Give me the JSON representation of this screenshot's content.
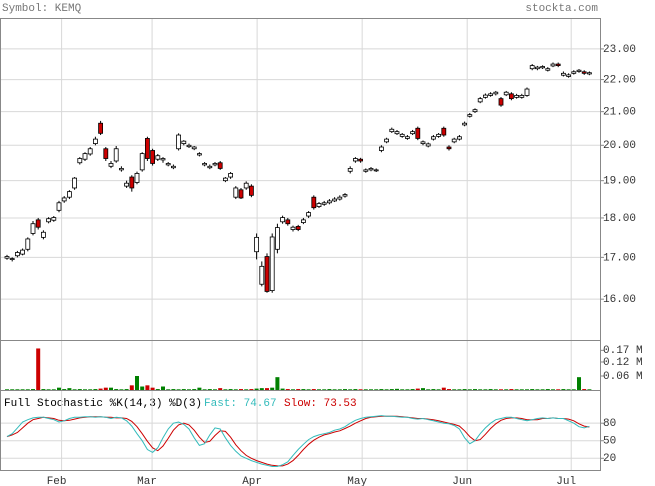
{
  "chart_data": {
    "type": "candlestick",
    "symbol_label": "Symbol: KEMQ",
    "source": "stockta.com",
    "log_scale": true,
    "grid": true,
    "ylim": [
      15.08,
      24.02
    ],
    "yticks": [
      {
        "value": 16,
        "label": "16.00"
      },
      {
        "value": 17,
        "label": "17.00"
      },
      {
        "value": 18,
        "label": "18.00"
      },
      {
        "value": 19,
        "label": "19.00"
      },
      {
        "value": 20,
        "label": "20.00"
      },
      {
        "value": 21,
        "label": "21.00"
      },
      {
        "value": 22,
        "label": "22.00"
      },
      {
        "value": 23,
        "label": "23.00"
      }
    ],
    "xticks": [
      {
        "value": 10.5,
        "label": "Feb"
      },
      {
        "value": 27.9,
        "label": "Mar"
      },
      {
        "value": 48.1,
        "label": "Apr"
      },
      {
        "value": 68.3,
        "label": "May"
      },
      {
        "value": 88.5,
        "label": "Jun"
      },
      {
        "value": 108.5,
        "label": "Jul"
      }
    ],
    "up_color": "#ffffff",
    "down_color": "#cc0000",
    "ohlc": [
      [
        16.98,
        17.06,
        16.94,
        17.02
      ],
      [
        16.95,
        17.0,
        16.9,
        16.97
      ],
      [
        17.04,
        17.16,
        17.0,
        17.12
      ],
      [
        17.08,
        17.22,
        17.05,
        17.18
      ],
      [
        17.2,
        17.5,
        17.15,
        17.46
      ],
      [
        17.6,
        17.92,
        17.55,
        17.85
      ],
      [
        17.95,
        18.0,
        17.7,
        17.76
      ],
      [
        17.5,
        17.68,
        17.45,
        17.63
      ],
      [
        17.9,
        18.02,
        17.86,
        17.98
      ],
      [
        17.94,
        18.05,
        17.9,
        18.01
      ],
      [
        18.2,
        18.45,
        18.15,
        18.4
      ],
      [
        18.45,
        18.58,
        18.4,
        18.53
      ],
      [
        18.55,
        18.74,
        18.5,
        18.7
      ],
      [
        18.8,
        19.1,
        18.75,
        19.07
      ],
      [
        19.5,
        19.66,
        19.45,
        19.62
      ],
      [
        19.6,
        19.8,
        19.55,
        19.76
      ],
      [
        19.75,
        19.95,
        19.7,
        19.9
      ],
      [
        20.05,
        20.25,
        20.0,
        20.18
      ],
      [
        20.65,
        20.72,
        20.3,
        20.35
      ],
      [
        19.9,
        19.95,
        19.55,
        19.62
      ],
      [
        19.4,
        19.55,
        19.35,
        19.48
      ],
      [
        19.55,
        19.98,
        19.5,
        19.9
      ],
      [
        19.3,
        19.4,
        19.25,
        19.34
      ],
      [
        18.85,
        19.0,
        18.8,
        18.93
      ],
      [
        19.1,
        19.15,
        18.7,
        18.8
      ],
      [
        18.95,
        19.25,
        18.9,
        19.2
      ],
      [
        19.3,
        19.8,
        19.25,
        19.76
      ],
      [
        20.2,
        20.25,
        19.55,
        19.62
      ],
      [
        19.85,
        19.9,
        19.42,
        19.48
      ],
      [
        19.6,
        19.75,
        19.55,
        19.7
      ],
      [
        19.58,
        19.66,
        19.5,
        19.62
      ],
      [
        19.44,
        19.52,
        19.4,
        19.48
      ],
      [
        19.36,
        19.45,
        19.32,
        19.4
      ],
      [
        19.9,
        20.35,
        19.85,
        20.3
      ],
      [
        20.05,
        20.15,
        20.0,
        20.12
      ],
      [
        19.96,
        20.05,
        19.92,
        20.0
      ],
      [
        19.9,
        19.98,
        19.86,
        19.95
      ],
      [
        19.72,
        19.8,
        19.68,
        19.76
      ],
      [
        19.44,
        19.52,
        19.4,
        19.48
      ],
      [
        19.36,
        19.45,
        19.32,
        19.4
      ],
      [
        19.44,
        19.52,
        19.4,
        19.48
      ],
      [
        19.5,
        19.55,
        19.3,
        19.34
      ],
      [
        19.0,
        19.1,
        18.96,
        19.07
      ],
      [
        19.1,
        19.24,
        19.05,
        19.2
      ],
      [
        18.55,
        18.85,
        18.5,
        18.8
      ],
      [
        18.75,
        18.8,
        18.5,
        18.53
      ],
      [
        18.8,
        18.98,
        18.75,
        18.93
      ],
      [
        18.85,
        18.9,
        18.55,
        18.6
      ],
      [
        17.14,
        17.6,
        16.95,
        17.5
      ],
      [
        16.35,
        16.9,
        16.3,
        16.78
      ],
      [
        17.02,
        17.1,
        16.15,
        16.18
      ],
      [
        16.2,
        17.6,
        16.15,
        17.51
      ],
      [
        17.2,
        17.85,
        17.1,
        17.75
      ],
      [
        17.9,
        18.06,
        17.85,
        18.01
      ],
      [
        17.95,
        18.0,
        17.8,
        17.85
      ],
      [
        17.7,
        17.8,
        17.65,
        17.76
      ],
      [
        17.78,
        17.82,
        17.66,
        17.7
      ],
      [
        17.88,
        18.0,
        17.84,
        17.95
      ],
      [
        18.05,
        18.18,
        18.0,
        18.14
      ],
      [
        18.55,
        18.6,
        18.22,
        18.27
      ],
      [
        18.3,
        18.42,
        18.26,
        18.38
      ],
      [
        18.36,
        18.45,
        18.32,
        18.4
      ],
      [
        18.4,
        18.5,
        18.36,
        18.45
      ],
      [
        18.45,
        18.55,
        18.42,
        18.5
      ],
      [
        18.5,
        18.6,
        18.46,
        18.55
      ],
      [
        18.58,
        18.66,
        18.54,
        18.62
      ],
      [
        19.26,
        19.4,
        19.2,
        19.34
      ],
      [
        19.55,
        19.66,
        19.5,
        19.62
      ],
      [
        19.6,
        19.64,
        19.5,
        19.55
      ],
      [
        19.26,
        19.34,
        19.22,
        19.3
      ],
      [
        19.3,
        19.38,
        19.26,
        19.34
      ],
      [
        19.28,
        19.34,
        19.24,
        19.3
      ],
      [
        19.85,
        20.0,
        19.8,
        19.95
      ],
      [
        20.1,
        20.22,
        20.06,
        20.18
      ],
      [
        20.4,
        20.52,
        20.36,
        20.47
      ],
      [
        20.34,
        20.45,
        20.3,
        20.4
      ],
      [
        20.26,
        20.36,
        20.22,
        20.32
      ],
      [
        20.2,
        20.3,
        20.16,
        20.25
      ],
      [
        20.34,
        20.45,
        20.3,
        20.4
      ],
      [
        20.5,
        20.55,
        20.15,
        20.2
      ],
      [
        20.05,
        20.14,
        20.0,
        20.1
      ],
      [
        19.98,
        20.08,
        19.94,
        20.04
      ],
      [
        20.18,
        20.3,
        20.14,
        20.25
      ],
      [
        20.26,
        20.36,
        20.22,
        20.32
      ],
      [
        20.5,
        20.55,
        20.25,
        20.3
      ],
      [
        19.95,
        20.0,
        19.85,
        19.9
      ],
      [
        20.1,
        20.22,
        20.06,
        20.18
      ],
      [
        20.18,
        20.3,
        20.14,
        20.25
      ],
      [
        20.6,
        20.7,
        20.56,
        20.65
      ],
      [
        20.86,
        20.96,
        20.82,
        20.91
      ],
      [
        21.0,
        21.1,
        20.96,
        21.06
      ],
      [
        21.3,
        21.45,
        21.26,
        21.4
      ],
      [
        21.44,
        21.56,
        21.4,
        21.51
      ],
      [
        21.5,
        21.6,
        21.46,
        21.55
      ],
      [
        21.55,
        21.64,
        21.5,
        21.6
      ],
      [
        21.4,
        21.45,
        21.15,
        21.2
      ],
      [
        21.52,
        21.64,
        21.48,
        21.6
      ],
      [
        21.55,
        21.6,
        21.35,
        21.4
      ],
      [
        21.44,
        21.55,
        21.4,
        21.5
      ],
      [
        21.44,
        21.55,
        21.4,
        21.5
      ],
      [
        21.5,
        21.75,
        21.46,
        21.7
      ],
      [
        22.35,
        22.5,
        22.3,
        22.45
      ],
      [
        22.35,
        22.44,
        22.3,
        22.4
      ],
      [
        22.38,
        22.46,
        22.34,
        22.42
      ],
      [
        22.3,
        22.4,
        22.26,
        22.35
      ],
      [
        22.44,
        22.55,
        22.4,
        22.5
      ],
      [
        22.5,
        22.55,
        22.4,
        22.45
      ],
      [
        22.14,
        22.26,
        22.1,
        22.2
      ],
      [
        22.1,
        22.2,
        22.06,
        22.15
      ],
      [
        22.2,
        22.3,
        22.16,
        22.25
      ],
      [
        22.26,
        22.34,
        22.22,
        22.3
      ],
      [
        22.25,
        22.3,
        22.15,
        22.2
      ],
      [
        22.18,
        22.26,
        22.14,
        22.22
      ]
    ],
    "volume": {
      "ylim": [
        0,
        0.21
      ],
      "yticks": [
        {
          "value": 0.06,
          "label": "0.06 M"
        },
        {
          "value": 0.12,
          "label": "0.12 M"
        },
        {
          "value": 0.17,
          "label": "0.17 M"
        }
      ],
      "up_color": "#008000",
      "down_color": "#cc0000",
      "values": [
        0.003,
        0.003,
        0.003,
        0.003,
        0.003,
        0.004,
        0.178,
        0.004,
        0.003,
        0.003,
        0.01,
        0.004,
        0.008,
        0.003,
        0.004,
        0.003,
        0.003,
        0.004,
        0.006,
        0.01,
        0.01,
        0.004,
        0.003,
        0.004,
        0.02,
        0.06,
        0.015,
        0.02,
        0.01,
        0.004,
        0.015,
        0.003,
        0.004,
        0.003,
        0.004,
        0.003,
        0.004,
        0.01,
        0.003,
        0.004,
        0.003,
        0.008,
        0.003,
        0.004,
        0.003,
        0.004,
        0.003,
        0.004,
        0.006,
        0.008,
        0.008,
        0.01,
        0.055,
        0.006,
        0.004,
        0.003,
        0.004,
        0.004,
        0.003,
        0.004,
        0.003,
        0.003,
        0.004,
        0.003,
        0.003,
        0.004,
        0.003,
        0.004,
        0.003,
        0.003,
        0.003,
        0.003,
        0.004,
        0.003,
        0.004,
        0.005,
        0.003,
        0.003,
        0.004,
        0.006,
        0.008,
        0.003,
        0.004,
        0.003,
        0.01,
        0.004,
        0.003,
        0.003,
        0.004,
        0.003,
        0.004,
        0.003,
        0.003,
        0.004,
        0.003,
        0.003,
        0.003,
        0.004,
        0.003,
        0.003,
        0.003,
        0.004,
        0.003,
        0.003,
        0.004,
        0.003,
        0.003,
        0.004,
        0.003,
        0.003,
        0.055,
        0.004,
        0.003
      ]
    },
    "stochastic": {
      "title": "Full Stochastic %K(14,3) %D(3)",
      "fast_label": "Fast: 74.67",
      "slow_label": "Slow: 73.53",
      "ylim": [
        0,
        135
      ],
      "yticks": [
        20,
        50,
        80
      ],
      "k": {
        "color": "#33bbbb",
        "values": [
          57,
          62,
          72,
          82,
          86,
          89,
          90,
          90,
          88,
          86,
          82,
          84,
          88,
          90,
          90,
          91,
          91,
          90,
          91,
          90,
          88,
          90,
          89,
          84,
          75,
          62,
          50,
          35,
          30,
          38,
          55,
          70,
          80,
          82,
          78,
          70,
          55,
          42,
          45,
          60,
          72,
          70,
          55,
          42,
          32,
          24,
          20,
          16,
          13,
          10,
          8,
          6,
          6,
          9,
          14,
          25,
          35,
          44,
          52,
          57,
          60,
          62,
          64,
          68,
          70,
          74,
          80,
          85,
          88,
          90,
          91,
          92,
          93,
          92,
          92,
          91,
          90,
          90,
          88,
          87,
          88,
          86,
          84,
          82,
          80,
          79,
          76,
          70,
          55,
          45,
          50,
          62,
          72,
          80,
          86,
          88,
          90,
          90,
          88,
          86,
          84,
          86,
          88,
          89,
          88,
          89,
          88,
          88,
          84,
          80,
          74,
          72,
          74.67
        ]
      },
      "d": {
        "color": "#cc0000",
        "values": [
          57,
          60,
          64,
          72,
          80,
          86,
          88,
          90,
          89,
          88,
          85,
          84,
          85,
          87,
          89,
          90,
          91,
          91,
          91,
          90,
          90,
          89,
          89,
          88,
          83,
          74,
          62,
          49,
          38,
          33,
          41,
          54,
          68,
          77,
          80,
          77,
          68,
          56,
          47,
          49,
          59,
          67,
          66,
          56,
          43,
          33,
          25,
          20,
          16,
          13,
          10,
          8,
          7,
          7,
          10,
          16,
          25,
          35,
          44,
          51,
          56,
          60,
          62,
          65,
          67,
          71,
          75,
          80,
          84,
          88,
          90,
          91,
          92,
          92,
          92,
          92,
          91,
          90,
          89,
          88,
          88,
          87,
          86,
          84,
          82,
          80,
          78,
          75,
          67,
          57,
          50,
          52,
          61,
          71,
          79,
          85,
          88,
          89,
          89,
          88,
          86,
          86,
          86,
          88,
          88,
          89,
          88,
          88,
          87,
          84,
          79,
          75,
          73.53
        ]
      }
    }
  }
}
